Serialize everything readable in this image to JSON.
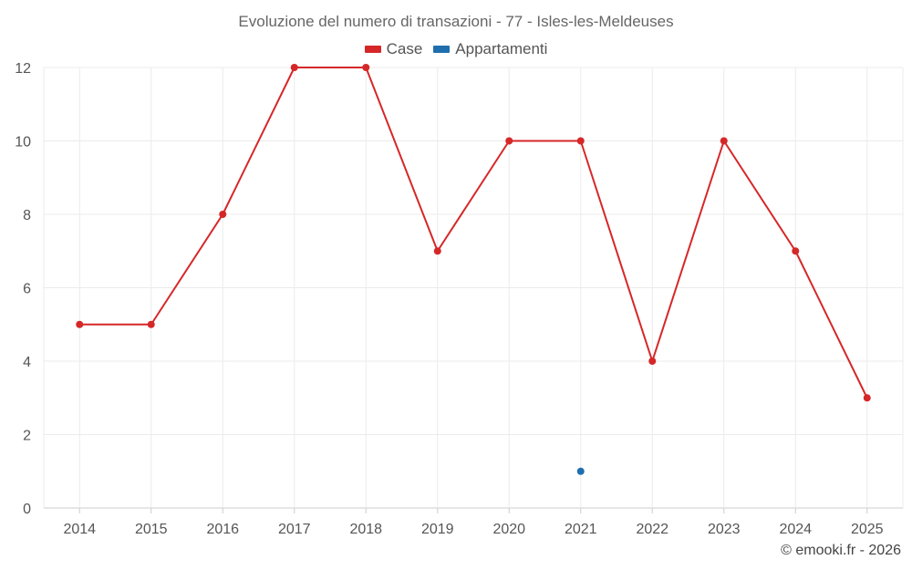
{
  "chart_data": {
    "type": "line",
    "title": "Evoluzione del numero di transazioni - 77 - Isles-les-Meldeuses",
    "categories": [
      "2014",
      "2015",
      "2016",
      "2017",
      "2018",
      "2019",
      "2020",
      "2021",
      "2022",
      "2023",
      "2024",
      "2025"
    ],
    "series": [
      {
        "name": "Case",
        "color": "#d62728",
        "values": [
          5,
          5,
          8,
          12,
          12,
          7,
          10,
          10,
          4,
          10,
          7,
          3
        ]
      },
      {
        "name": "Appartamenti",
        "color": "#1f6fae",
        "values": [
          null,
          null,
          null,
          null,
          null,
          null,
          null,
          1,
          null,
          null,
          null,
          null
        ]
      }
    ],
    "ylim": [
      0,
      12
    ],
    "yticks": [
      0,
      2,
      4,
      6,
      8,
      10,
      12
    ],
    "grid": true,
    "legend": "top-center"
  },
  "credit": "© emooki.fr - 2026"
}
